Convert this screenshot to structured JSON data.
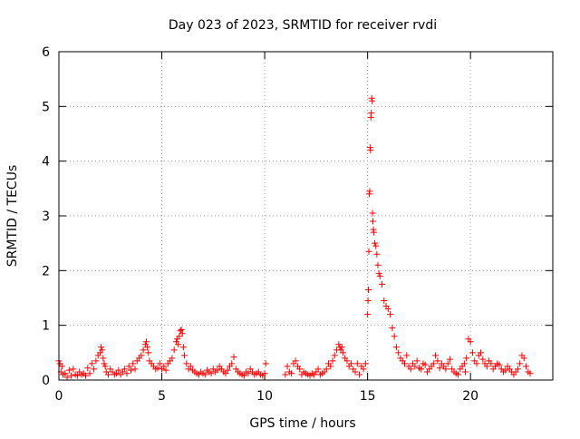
{
  "chart_data": {
    "type": "scatter",
    "title": "Day 023 of 2023, SRMTID for receiver rvdi",
    "xlabel": "GPS time / hours",
    "ylabel": "SRMTID / TECUs",
    "xlim": [
      0,
      24
    ],
    "ylim": [
      0,
      6
    ],
    "xticks": [
      0,
      5,
      10,
      15,
      20
    ],
    "yticks": [
      0,
      1,
      2,
      3,
      4,
      5,
      6
    ],
    "grid": true,
    "marker": "+",
    "color": "#ff0000",
    "series": [
      {
        "x": [
          0.0,
          0.05,
          0.1,
          0.15,
          0.2,
          0.3,
          0.4,
          0.5,
          0.6,
          0.7,
          0.8,
          0.9,
          1.0,
          1.1,
          1.2,
          1.3,
          1.4,
          1.5,
          1.6,
          1.7,
          1.8,
          1.9,
          2.0,
          2.05,
          2.1,
          2.15,
          2.2,
          2.25,
          2.3,
          2.4,
          2.5,
          2.6,
          2.7,
          2.8,
          2.9,
          3.0,
          3.1,
          3.2,
          3.3,
          3.4,
          3.5,
          3.6,
          3.7,
          3.8,
          3.9,
          4.0,
          4.1,
          4.2,
          4.25,
          4.3,
          4.35,
          4.4,
          4.5,
          4.6,
          4.7,
          4.8,
          4.9,
          5.0,
          5.1,
          5.2,
          5.3,
          5.4,
          5.5,
          5.6,
          5.7,
          5.75,
          5.8,
          5.85,
          5.9,
          5.95,
          6.0,
          6.05,
          6.1,
          6.2,
          6.3,
          6.4,
          6.5,
          6.6,
          6.7,
          6.8,
          6.9,
          7.0,
          7.1,
          7.2,
          7.3,
          7.4,
          7.5,
          7.6,
          7.7,
          7.8,
          7.9,
          8.0,
          8.1,
          8.2,
          8.3,
          8.4,
          8.5,
          8.6,
          8.7,
          8.8,
          8.9,
          9.0,
          9.1,
          9.2,
          9.3,
          9.4,
          9.5,
          9.6,
          9.7,
          9.8,
          9.9,
          10.0,
          10.05,
          11.0,
          11.1,
          11.2,
          11.3,
          11.4,
          11.5,
          11.6,
          11.7,
          11.8,
          11.9,
          12.0,
          12.1,
          12.2,
          12.3,
          12.4,
          12.5,
          12.6,
          12.7,
          12.8,
          12.9,
          13.0,
          13.1,
          13.2,
          13.3,
          13.4,
          13.5,
          13.6,
          13.65,
          13.7,
          13.75,
          13.8,
          13.9,
          14.0,
          14.1,
          14.2,
          14.3,
          14.4,
          14.5,
          14.6,
          14.7,
          14.8,
          14.9,
          15.0,
          15.02,
          15.04,
          15.06,
          15.08,
          15.1,
          15.12,
          15.14,
          15.16,
          15.18,
          15.2,
          15.22,
          15.24,
          15.26,
          15.28,
          15.3,
          15.35,
          15.4,
          15.45,
          15.5,
          15.55,
          15.6,
          15.7,
          15.8,
          15.9,
          16.0,
          16.1,
          16.2,
          16.3,
          16.4,
          16.5,
          16.6,
          16.7,
          16.8,
          16.9,
          17.0,
          17.1,
          17.2,
          17.3,
          17.4,
          17.5,
          17.6,
          17.7,
          17.8,
          17.9,
          18.0,
          18.1,
          18.2,
          18.3,
          18.4,
          18.5,
          18.6,
          18.7,
          18.8,
          18.9,
          19.0,
          19.1,
          19.2,
          19.3,
          19.4,
          19.5,
          19.6,
          19.7,
          19.75,
          19.8,
          19.9,
          20.0,
          20.1,
          20.2,
          20.3,
          20.4,
          20.5,
          20.6,
          20.7,
          20.8,
          20.9,
          21.0,
          21.1,
          21.2,
          21.3,
          21.4,
          21.5,
          21.6,
          21.7,
          21.8,
          21.9,
          22.0,
          22.1,
          22.2,
          22.3,
          22.4,
          22.5,
          22.6,
          22.7,
          22.8,
          22.9
        ],
        "y": [
          0.35,
          0.3,
          0.15,
          0.25,
          0.1,
          0.12,
          0.05,
          0.18,
          0.08,
          0.2,
          0.1,
          0.08,
          0.15,
          0.1,
          0.12,
          0.08,
          0.22,
          0.12,
          0.3,
          0.2,
          0.35,
          0.45,
          0.5,
          0.6,
          0.55,
          0.4,
          0.3,
          0.25,
          0.15,
          0.1,
          0.2,
          0.15,
          0.1,
          0.12,
          0.18,
          0.1,
          0.15,
          0.2,
          0.12,
          0.25,
          0.18,
          0.3,
          0.2,
          0.35,
          0.4,
          0.45,
          0.55,
          0.65,
          0.7,
          0.6,
          0.5,
          0.35,
          0.3,
          0.25,
          0.2,
          0.22,
          0.3,
          0.2,
          0.25,
          0.18,
          0.3,
          0.35,
          0.4,
          0.55,
          0.7,
          0.75,
          0.65,
          0.8,
          0.9,
          0.92,
          0.85,
          0.6,
          0.45,
          0.3,
          0.2,
          0.25,
          0.18,
          0.15,
          0.12,
          0.1,
          0.15,
          0.12,
          0.1,
          0.18,
          0.15,
          0.12,
          0.2,
          0.15,
          0.18,
          0.25,
          0.2,
          0.15,
          0.12,
          0.18,
          0.25,
          0.3,
          0.42,
          0.2,
          0.15,
          0.12,
          0.1,
          0.08,
          0.15,
          0.12,
          0.2,
          0.15,
          0.1,
          0.12,
          0.15,
          0.1,
          0.08,
          0.12,
          0.3,
          0.1,
          0.25,
          0.15,
          0.12,
          0.3,
          0.35,
          0.25,
          0.2,
          0.1,
          0.15,
          0.12,
          0.1,
          0.08,
          0.12,
          0.1,
          0.15,
          0.2,
          0.1,
          0.12,
          0.15,
          0.2,
          0.3,
          0.25,
          0.35,
          0.45,
          0.55,
          0.65,
          0.6,
          0.55,
          0.6,
          0.5,
          0.4,
          0.35,
          0.25,
          0.3,
          0.2,
          0.15,
          0.3,
          0.1,
          0.25,
          0.2,
          0.3,
          1.2,
          1.45,
          1.65,
          2.35,
          3.4,
          3.45,
          4.25,
          4.2,
          4.8,
          4.88,
          5.15,
          5.1,
          3.05,
          2.9,
          2.75,
          2.7,
          2.5,
          2.45,
          2.3,
          2.1,
          1.95,
          1.9,
          1.75,
          1.45,
          1.35,
          1.3,
          1.2,
          0.95,
          0.8,
          0.6,
          0.5,
          0.4,
          0.35,
          0.3,
          0.45,
          0.25,
          0.2,
          0.3,
          0.25,
          0.35,
          0.22,
          0.2,
          0.3,
          0.28,
          0.15,
          0.2,
          0.25,
          0.3,
          0.45,
          0.35,
          0.22,
          0.3,
          0.25,
          0.2,
          0.3,
          0.38,
          0.2,
          0.15,
          0.12,
          0.1,
          0.2,
          0.25,
          0.3,
          0.15,
          0.4,
          0.75,
          0.7,
          0.5,
          0.35,
          0.3,
          0.45,
          0.5,
          0.38,
          0.3,
          0.25,
          0.35,
          0.3,
          0.2,
          0.25,
          0.3,
          0.28,
          0.2,
          0.15,
          0.18,
          0.25,
          0.2,
          0.15,
          0.1,
          0.15,
          0.2,
          0.3,
          0.45,
          0.4,
          0.25,
          0.15,
          0.12
        ]
      }
    ]
  }
}
